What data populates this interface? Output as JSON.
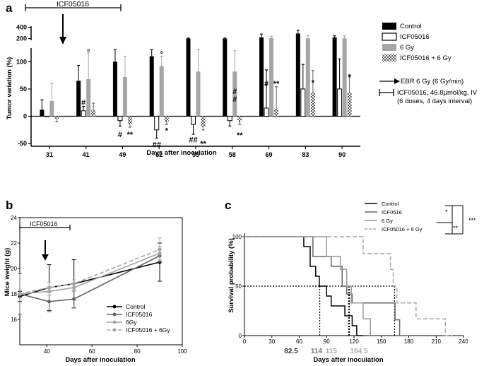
{
  "chart_data": [
    {
      "panel": "a",
      "type": "bar",
      "xlabel": "Days after inoculation",
      "ylabel": "Tumor variation (%)",
      "categories": [
        "31",
        "41",
        "49",
        "52",
        "55",
        "58",
        "69",
        "83",
        "90"
      ],
      "yticks_lower": [
        "-50",
        "0",
        "50",
        "100"
      ],
      "yticks_upper": [
        "200",
        "400"
      ],
      "ylim_lower": [
        -55,
        125
      ],
      "ylim_upper": [
        170,
        420
      ],
      "series": [
        {
          "name": "Control",
          "color": "#000000",
          "pattern": "solid",
          "values": [
            12,
            65,
            100,
            110,
            200,
            200,
            220,
            290,
            220
          ],
          "err": [
            18,
            28,
            22,
            12,
            10,
            10,
            60,
            60,
            30
          ]
        },
        {
          "name": "ICF05016",
          "color": "#ffffff",
          "pattern": "outline",
          "values": [
            0,
            10,
            -8,
            -25,
            -15,
            -8,
            15,
            50,
            50
          ],
          "err": [
            0,
            8,
            10,
            15,
            18,
            10,
            70,
            45,
            55
          ]
        },
        {
          "name": "6 Gy",
          "color": "#a6a6a6",
          "pattern": "solid",
          "values": [
            28,
            68,
            72,
            92,
            82,
            82,
            210,
            205,
            205
          ],
          "err": [
            32,
            48,
            38,
            18,
            40,
            38,
            30,
            45,
            40
          ]
        },
        {
          "name": "ICF05016 + 6 Gy",
          "color": "#606060",
          "pattern": "checker",
          "values": [
            -5,
            12,
            -15,
            -10,
            -20,
            -10,
            14,
            44,
            44
          ],
          "err": [
            5,
            12,
            5,
            5,
            5,
            5,
            40,
            40,
            32
          ]
        }
      ],
      "treatment_label": "ICF05016",
      "annotations": [
        {
          "text": "#",
          "cat": 1,
          "bar": 1,
          "at": 26
        },
        {
          "text": "°",
          "cat": 1,
          "bar": 2,
          "at": 118
        },
        {
          "text": "#",
          "cat": 2,
          "bar": 1,
          "at": -33
        },
        {
          "text": "**",
          "cat": 2,
          "bar": 3,
          "at": -33
        },
        {
          "text": "°",
          "cat": 3,
          "bar": 2,
          "at": 114
        },
        {
          "text": "##",
          "cat": 3,
          "bar": 1,
          "at": -52
        },
        {
          "text": "*",
          "cat": 3,
          "bar": 3,
          "at": -26
        },
        {
          "text": "##",
          "cat": 4,
          "bar": 1,
          "at": -43
        },
        {
          "text": "**",
          "cat": 4,
          "bar": 3,
          "at": -50
        },
        {
          "text": "#",
          "cat": 5,
          "bar": 2,
          "at": 46
        },
        {
          "text": "#",
          "cat": 5,
          "bar": 2,
          "at": 32
        },
        {
          "text": "**",
          "cat": 5,
          "bar": 3,
          "at": -34
        },
        {
          "text": "#",
          "cat": 6,
          "bar": 1,
          "at": 60
        },
        {
          "text": "**",
          "cat": 6,
          "bar": 3,
          "at": 60
        },
        {
          "text": "*",
          "cat": 7,
          "bar": 3,
          "at": 62
        },
        {
          "text": "*",
          "cat": 8,
          "bar": 3,
          "at": 72
        }
      ],
      "side_legend": {
        "ebr": "EBR 6 Gy (6 Gy/min)",
        "icf_line1": "ICF05016, 46.8µmol/kg, IV",
        "icf_line2": "(6 doses, 4 days interval)"
      }
    },
    {
      "panel": "b",
      "type": "line",
      "xlabel": "Days after inoculation",
      "ylabel": "Mice weight (g)",
      "xlim": [
        28,
        100
      ],
      "ylim": [
        14,
        24
      ],
      "xticks": [
        "40",
        "60",
        "80",
        "100"
      ],
      "yticks": [
        "16",
        "18",
        "20",
        "22",
        "24"
      ],
      "treatment_label": "ICF05016",
      "x": [
        28,
        41,
        52,
        90
      ],
      "series": [
        {
          "name": "Control",
          "color": "#000000",
          "dash": "solid",
          "marker": "#000000",
          "values": [
            17.8,
            18.5,
            18.8,
            20.5
          ],
          "err": [
            0.4,
            1.8,
            1.9,
            1.5
          ]
        },
        {
          "name": "ICF05016",
          "color": "#666666",
          "dash": "solid",
          "marker": "#666666",
          "values": [
            18.0,
            17.4,
            17.6,
            21.0
          ],
          "err": [
            1.6,
            0.8,
            0.7,
            0.5
          ]
        },
        {
          "name": "6Gy",
          "color": "#a6a6a6",
          "dash": "solid",
          "marker": "#a6a6a6",
          "values": [
            18.0,
            18.2,
            18.5,
            21.2
          ],
          "err": [
            0.3,
            0.3,
            0.3,
            0.5
          ]
        },
        {
          "name": "ICF05016 + 6Gy",
          "color": "#a6a6a6",
          "dash": "dash",
          "marker": "#a6a6a6",
          "values": [
            18.0,
            18.5,
            18.8,
            21.5
          ],
          "err": [
            0.3,
            0.4,
            0.3,
            0.9
          ]
        }
      ]
    },
    {
      "panel": "c",
      "type": "line",
      "subtype": "kaplan-meier",
      "xlabel": "Days after inoculation",
      "ylabel": "Survival probability (%)",
      "xlim": [
        0,
        240
      ],
      "ylim": [
        0,
        100
      ],
      "xticks": [
        "0",
        "30",
        "60",
        "90",
        "120",
        "150",
        "180",
        "210",
        "240"
      ],
      "yticks": [
        "0",
        "50",
        "100"
      ],
      "medians": [
        {
          "label": "82.5",
          "x": 82.5,
          "color": "#333333"
        },
        {
          "label": "114",
          "x": 114,
          "color": "#777777"
        },
        {
          "label": "115",
          "x": 115,
          "color": "#aaaaaa"
        },
        {
          "label": "164.5",
          "x": 164.5,
          "color": "#aaaaaa"
        }
      ],
      "series": [
        {
          "name": "Control",
          "color": "#000000",
          "dash": "solid",
          "steps": [
            [
              0,
              100
            ],
            [
              65,
              100
            ],
            [
              65,
              90
            ],
            [
              72,
              90
            ],
            [
              72,
              70
            ],
            [
              78,
              70
            ],
            [
              78,
              60
            ],
            [
              82,
              60
            ],
            [
              82,
              50
            ],
            [
              90,
              50
            ],
            [
              90,
              40
            ],
            [
              95,
              40
            ],
            [
              95,
              30
            ],
            [
              110,
              30
            ],
            [
              110,
              20
            ],
            [
              118,
              20
            ],
            [
              118,
              10
            ],
            [
              123,
              10
            ],
            [
              123,
              0
            ],
            [
              130,
              0
            ]
          ]
        },
        {
          "name": "ICF0516",
          "color": "#666666",
          "dash": "solid",
          "steps": [
            [
              0,
              100
            ],
            [
              75,
              100
            ],
            [
              75,
              80
            ],
            [
              95,
              80
            ],
            [
              95,
              70
            ],
            [
              107,
              70
            ],
            [
              107,
              50
            ],
            [
              112,
              50
            ],
            [
              112,
              42
            ],
            [
              118,
              42
            ],
            [
              118,
              33
            ],
            [
              165,
              33
            ],
            [
              165,
              16
            ],
            [
              170,
              16
            ],
            [
              170,
              0
            ],
            [
              180,
              0
            ]
          ]
        },
        {
          "name": "6 Gy",
          "color": "#999999",
          "dash": "solid",
          "steps": [
            [
              0,
              100
            ],
            [
              90,
              100
            ],
            [
              90,
              80
            ],
            [
              105,
              80
            ],
            [
              105,
              67
            ],
            [
              112,
              67
            ],
            [
              112,
              50
            ],
            [
              117,
              50
            ],
            [
              117,
              33
            ],
            [
              130,
              33
            ],
            [
              130,
              17
            ],
            [
              138,
              17
            ],
            [
              138,
              0
            ]
          ]
        },
        {
          "name": "ICF05016 + 6 Gy",
          "color": "#a6a6a6",
          "dash": "dash",
          "steps": [
            [
              0,
              100
            ],
            [
              130,
              100
            ],
            [
              130,
              83
            ],
            [
              160,
              83
            ],
            [
              160,
              67
            ],
            [
              163,
              67
            ],
            [
              163,
              50
            ],
            [
              167,
              50
            ],
            [
              167,
              33
            ],
            [
              188,
              33
            ],
            [
              188,
              17
            ],
            [
              220,
              17
            ],
            [
              220,
              0
            ],
            [
              228,
              0
            ]
          ]
        }
      ],
      "significance": [
        "*",
        "**",
        "***"
      ]
    }
  ]
}
